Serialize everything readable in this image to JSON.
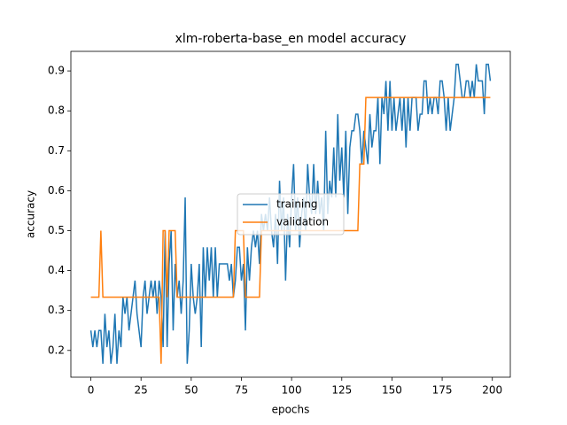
{
  "chart_data": {
    "type": "line",
    "title": "xlm-roberta-base_en model accuracy",
    "x_label": "epochs",
    "y_label": "accuracy",
    "xlim": [
      -9.95,
      208.95
    ],
    "xticks": [
      0,
      25,
      50,
      75,
      100,
      125,
      150,
      175,
      200
    ],
    "ylim": [
      0.133,
      0.949
    ],
    "yticks": [
      0.2,
      0.3,
      0.4,
      0.5,
      0.6,
      0.7,
      0.8,
      0.9
    ],
    "legend": "center",
    "grid": false,
    "series": [
      {
        "name": "training",
        "color": "#1f77b4",
        "values": [
          0.25,
          0.2083,
          0.25,
          0.2083,
          0.25,
          0.25,
          0.1667,
          0.2917,
          0.2083,
          0.25,
          0.1667,
          0.2083,
          0.2917,
          0.1667,
          0.25,
          0.2083,
          0.3333,
          0.2917,
          0.3333,
          0.25,
          0.2917,
          0.3333,
          0.375,
          0.2917,
          0.25,
          0.2083,
          0.3333,
          0.375,
          0.2917,
          0.3333,
          0.375,
          0.3333,
          0.375,
          0.2917,
          0.375,
          0.3333,
          0.2083,
          0.5,
          0.2083,
          0.4167,
          0.5,
          0.25,
          0.4167,
          0.3333,
          0.375,
          0.2917,
          0.375,
          0.5833,
          0.1667,
          0.25,
          0.4167,
          0.3333,
          0.2917,
          0.3333,
          0.4167,
          0.2083,
          0.4583,
          0.3333,
          0.4583,
          0.375,
          0.4583,
          0.3333,
          0.4583,
          0.3333,
          0.4167,
          0.4167,
          0.4167,
          0.4167,
          0.4167,
          0.375,
          0.4167,
          0.3333,
          0.375,
          0.4583,
          0.4583,
          0.375,
          0.4167,
          0.25,
          0.4583,
          0.375,
          0.4583,
          0.5,
          0.4583,
          0.5,
          0.4167,
          0.5417,
          0.5,
          0.5417,
          0.5,
          0.5833,
          0.5,
          0.4583,
          0.5417,
          0.4167,
          0.625,
          0.5,
          0.5833,
          0.375,
          0.5417,
          0.4583,
          0.5833,
          0.6667,
          0.5,
          0.5833,
          0.4583,
          0.5417,
          0.5833,
          0.5,
          0.6667,
          0.5833,
          0.5417,
          0.6667,
          0.5417,
          0.625,
          0.5417,
          0.5833,
          0.5,
          0.75,
          0.5417,
          0.625,
          0.5833,
          0.7083,
          0.5833,
          0.7917,
          0.625,
          0.7083,
          0.5833,
          0.75,
          0.5417,
          0.7083,
          0.75,
          0.75,
          0.7917,
          0.7917,
          0.75,
          0.6667,
          0.75,
          0.7083,
          0.6667,
          0.7917,
          0.7083,
          0.75,
          0.75,
          0.8333,
          0.6667,
          0.8333,
          0.7917,
          0.875,
          0.75,
          0.875,
          0.75,
          0.8333,
          0.75,
          0.7917,
          0.8333,
          0.75,
          0.8333,
          0.7083,
          0.8333,
          0.75,
          0.8333,
          0.8333,
          0.8333,
          0.75,
          0.7917,
          0.7917,
          0.875,
          0.875,
          0.7917,
          0.8333,
          0.7917,
          0.8333,
          0.8333,
          0.7917,
          0.875,
          0.875,
          0.8333,
          0.75,
          0.8333,
          0.75,
          0.7917,
          0.8333,
          0.9167,
          0.9167,
          0.875,
          0.8333,
          0.8333,
          0.875,
          0.875,
          0.8333,
          0.875,
          0.8333,
          0.9167,
          0.875,
          0.875,
          0.875,
          0.7917,
          0.9167,
          0.9167,
          0.875
        ]
      },
      {
        "name": "validation",
        "color": "#ff7f0e",
        "values": [
          0.3333,
          0.3333,
          0.3333,
          0.3333,
          0.3333,
          0.5,
          0.3333,
          0.3333,
          0.3333,
          0.3333,
          0.3333,
          0.3333,
          0.3333,
          0.3333,
          0.3333,
          0.3333,
          0.3333,
          0.3333,
          0.3333,
          0.3333,
          0.3333,
          0.3333,
          0.3333,
          0.3333,
          0.3333,
          0.3333,
          0.3333,
          0.3333,
          0.3333,
          0.3333,
          0.3333,
          0.3333,
          0.3333,
          0.3333,
          0.3333,
          0.1667,
          0.5,
          0.5,
          0.3333,
          0.5,
          0.5,
          0.5,
          0.5,
          0.3333,
          0.3333,
          0.3333,
          0.3333,
          0.3333,
          0.3333,
          0.3333,
          0.3333,
          0.3333,
          0.3333,
          0.3333,
          0.3333,
          0.3333,
          0.3333,
          0.3333,
          0.3333,
          0.3333,
          0.3333,
          0.3333,
          0.3333,
          0.3333,
          0.3333,
          0.3333,
          0.3333,
          0.3333,
          0.3333,
          0.3333,
          0.3333,
          0.3333,
          0.5,
          0.5,
          0.5,
          0.5,
          0.5,
          0.3333,
          0.3333,
          0.3333,
          0.3333,
          0.3333,
          0.3333,
          0.3333,
          0.3333,
          0.5,
          0.5,
          0.5,
          0.5,
          0.5,
          0.5,
          0.5,
          0.5,
          0.5,
          0.5,
          0.5,
          0.5,
          0.5,
          0.5,
          0.5,
          0.5,
          0.5,
          0.5,
          0.5,
          0.5,
          0.5,
          0.5,
          0.5,
          0.5,
          0.5,
          0.5,
          0.5,
          0.5,
          0.5,
          0.5,
          0.5,
          0.5,
          0.5,
          0.5,
          0.5,
          0.5,
          0.5,
          0.5,
          0.5,
          0.5,
          0.5,
          0.5,
          0.5,
          0.5,
          0.5,
          0.5,
          0.5,
          0.5,
          0.5,
          0.6667,
          0.6667,
          0.6667,
          0.8333,
          0.8333,
          0.8333,
          0.8333,
          0.8333,
          0.8333,
          0.8333,
          0.8333,
          0.8333,
          0.8333,
          0.8333,
          0.8333,
          0.8333,
          0.8333,
          0.8333,
          0.8333,
          0.8333,
          0.8333,
          0.8333,
          0.8333,
          0.8333,
          0.8333,
          0.8333,
          0.8333,
          0.8333,
          0.8333,
          0.8333,
          0.8333,
          0.8333,
          0.8333,
          0.8333,
          0.8333,
          0.8333,
          0.8333,
          0.8333,
          0.8333,
          0.8333,
          0.8333,
          0.8333,
          0.8333,
          0.8333,
          0.8333,
          0.8333,
          0.8333,
          0.8333,
          0.8333,
          0.8333,
          0.8333,
          0.8333,
          0.8333,
          0.8333,
          0.8333,
          0.8333,
          0.8333,
          0.8333,
          0.8333,
          0.8333,
          0.8333,
          0.8333,
          0.8333,
          0.8333,
          0.8333,
          0.8333
        ]
      }
    ]
  }
}
